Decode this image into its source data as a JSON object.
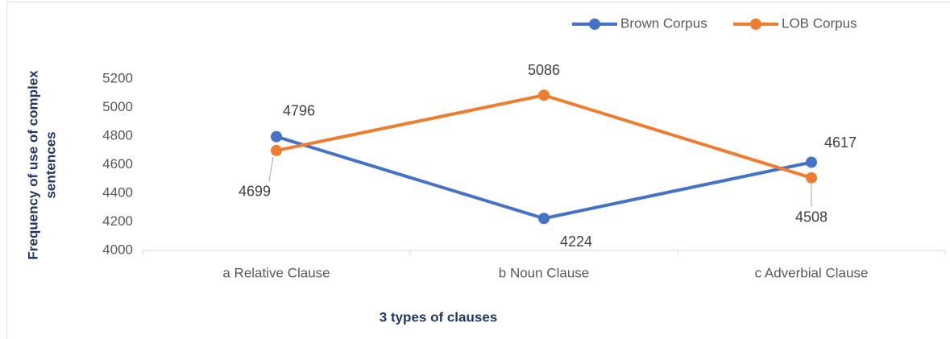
{
  "chart_data": {
    "type": "line",
    "x_label": "3 types of clauses",
    "y_label": [
      "Frequency of use of complex",
      "sentences"
    ],
    "categories": [
      "a Relative Clause",
      "b Noun Clause",
      "c Adverbial Clause"
    ],
    "series": [
      {
        "name": "Brown Corpus",
        "color": "#4472c4",
        "values": [
          4796,
          4224,
          4617
        ]
      },
      {
        "name": "LOB Corpus",
        "color": "#ed7d31",
        "values": [
          4699,
          5086,
          4508
        ]
      }
    ],
    "ylim": [
      4000,
      5200
    ],
    "yticks": [
      4000,
      4200,
      4400,
      4600,
      4800,
      5000,
      5200
    ],
    "grid": false,
    "legend": "top-right"
  }
}
